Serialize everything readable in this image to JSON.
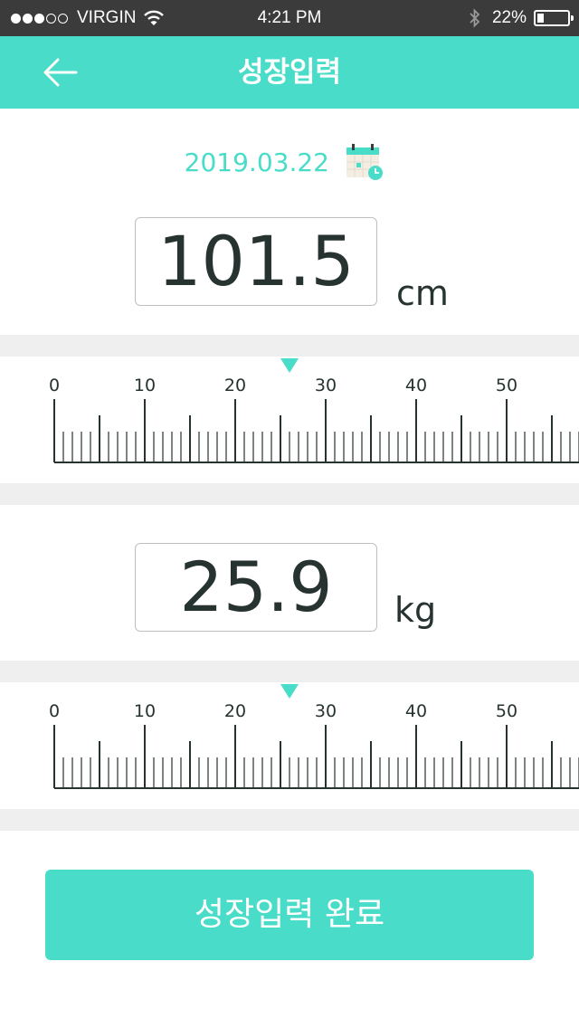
{
  "status_bar": {
    "signal_bars_filled": 3,
    "signal_bars_total": 5,
    "carrier": "VIRGIN",
    "time": "4:21 PM",
    "battery_percent": "22%",
    "battery_level": 0.22,
    "icons": [
      "wifi-icon",
      "bluetooth-icon",
      "battery-icon"
    ]
  },
  "header": {
    "title": "성장입력",
    "back_icon": "arrow-left-icon",
    "background_color": "#49dcc8"
  },
  "date": {
    "value": "2019.03.22",
    "icon": "calendar-icon"
  },
  "height": {
    "value": "101.5",
    "unit": "cm",
    "ruler_labels": [
      "0",
      "10",
      "20",
      "30",
      "40",
      "50"
    ]
  },
  "weight": {
    "value": "25.9",
    "unit": "kg",
    "ruler_labels": [
      "0",
      "10",
      "20",
      "30",
      "40",
      "50"
    ]
  },
  "submit_button": {
    "label": "성장입력 완료"
  },
  "colors": {
    "accent": "#49dcc8",
    "text": "#263330",
    "divider": "#efefef"
  }
}
